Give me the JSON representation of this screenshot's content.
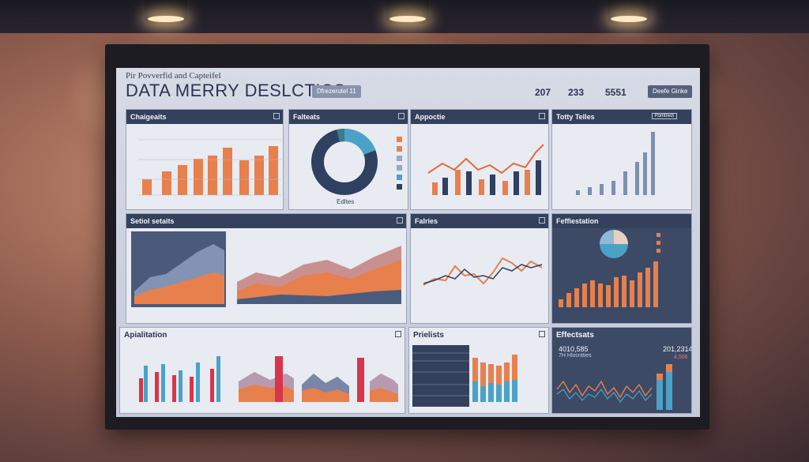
{
  "header": {
    "subtitle": "Pir Povverfid and Capteifel",
    "title": "DATA MERRY DESLCTICS",
    "chip": "Dfrezerutel 11",
    "stats": [
      "207",
      "233",
      "5551"
    ],
    "button": "Deefe Ginke"
  },
  "panels": {
    "p1": "Chaigeaits",
    "p2": "Falteats",
    "p3": "Appoctie",
    "p4": "Totty Telles",
    "p5": "Setiol setaits",
    "p6": "Falries",
    "p7": "Feffiestation",
    "p8": "Apialitation",
    "p9": "Prielists",
    "p10": "Effectsats"
  },
  "donut_label": "Edltes",
  "p4_button": "Pomtreot",
  "p10_values": [
    "4010,585",
    "201,2314"
  ],
  "p10_sub": "7H Hlocntties",
  "p10_value_red": "4,506",
  "colors": {
    "panel_header": "#34415d",
    "screen": "#d7dbe6",
    "orange": "#e7804d",
    "navy": "#2f4060",
    "teal": "#4aa3c7",
    "crimson": "#d8344c"
  }
}
